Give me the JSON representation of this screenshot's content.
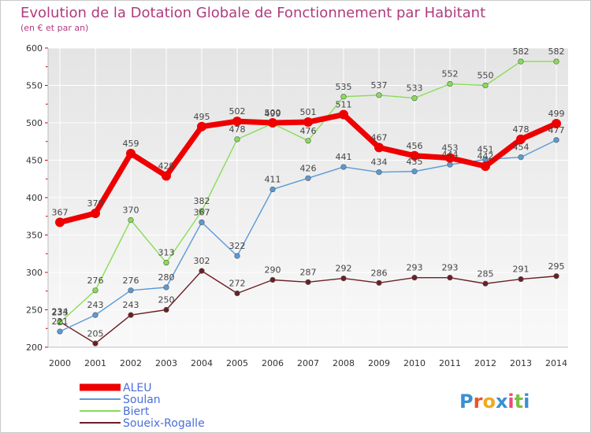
{
  "chart_data": {
    "type": "line",
    "title": "Evolution de la Dotation Globale de Fonctionnement par Habitant",
    "subtitle": "(en € et par an)",
    "x": [
      "2000",
      "2001",
      "2002",
      "2003",
      "2004",
      "2005",
      "2006",
      "2007",
      "2008",
      "2009",
      "2010",
      "2011",
      "2012",
      "2013",
      "2014"
    ],
    "ylim": [
      200,
      600
    ],
    "yticks": [
      200,
      250,
      300,
      350,
      400,
      450,
      500,
      550,
      600
    ],
    "grid": true,
    "legend_position": "bottom-left",
    "series": [
      {
        "name": "ALEU",
        "color": "#ee0000",
        "values": [
          367,
          379,
          459,
          429,
          495,
          502,
          500,
          501,
          511,
          467,
          456,
          453,
          442,
          478,
          499
        ]
      },
      {
        "name": "Soulan",
        "color": "#5a9ad6",
        "values": [
          221,
          243,
          276,
          280,
          367,
          322,
          411,
          426,
          441,
          434,
          435,
          444,
          451,
          454,
          477
        ]
      },
      {
        "name": "Biert",
        "color": "#88dd55",
        "values": [
          233,
          276,
          370,
          313,
          382,
          478,
          499,
          476,
          535,
          537,
          533,
          552,
          550,
          582,
          582
        ]
      },
      {
        "name": "Soueix-Rogalle",
        "color": "#6b2024",
        "values": [
          234,
          205,
          243,
          250,
          302,
          272,
          290,
          287,
          292,
          286,
          293,
          293,
          285,
          291,
          295
        ]
      }
    ]
  },
  "logo": {
    "letters": [
      "P",
      "r",
      "o",
      "x",
      "i",
      "t",
      "i"
    ],
    "colors": [
      "#3b8fd4",
      "#e8542a",
      "#f0a91e",
      "#3b8fd4",
      "#e84a7a",
      "#7bc142",
      "#3b8fd4"
    ]
  }
}
